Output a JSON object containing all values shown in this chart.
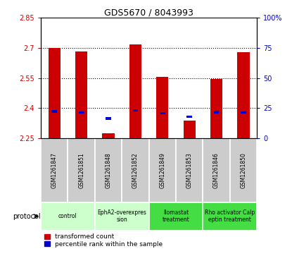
{
  "title": "GDS5670 / 8043993",
  "samples": [
    "GSM1261847",
    "GSM1261851",
    "GSM1261848",
    "GSM1261852",
    "GSM1261849",
    "GSM1261853",
    "GSM1261846",
    "GSM1261850"
  ],
  "red_values": [
    2.7,
    2.683,
    2.273,
    2.718,
    2.555,
    2.337,
    2.545,
    2.678
  ],
  "blue_values": [
    2.383,
    2.378,
    2.348,
    2.39,
    2.375,
    2.358,
    2.38,
    2.378
  ],
  "bar_base": 2.25,
  "ylim_left": [
    2.25,
    2.85
  ],
  "ylim_right": [
    0,
    100
  ],
  "yticks_left": [
    2.25,
    2.4,
    2.55,
    2.7,
    2.85
  ],
  "yticks_right": [
    0,
    25,
    50,
    75,
    100
  ],
  "ytick_labels_left": [
    "2.25",
    "2.4",
    "2.55",
    "2.7",
    "2.85"
  ],
  "ytick_labels_right": [
    "0",
    "25",
    "50",
    "75",
    "100%"
  ],
  "red_color": "#cc0000",
  "blue_color": "#0000cc",
  "bar_width": 0.45,
  "blue_bar_width": 0.2,
  "blue_bar_height": 0.012,
  "protocols": [
    {
      "label": "control",
      "indices": [
        0,
        1
      ],
      "color": "#ccffcc"
    },
    {
      "label": "EphA2-overexpres\nsion",
      "indices": [
        2,
        3
      ],
      "color": "#ccffcc"
    },
    {
      "label": "Ilomastat\ntreatment",
      "indices": [
        4,
        5
      ],
      "color": "#44dd44"
    },
    {
      "label": "Rho activator Calp\neptin treatment",
      "indices": [
        6,
        7
      ],
      "color": "#44dd44"
    }
  ],
  "sample_bg": "#cccccc",
  "legend_red_label": "transformed count",
  "legend_blue_label": "percentile rank within the sample",
  "protocol_text": "protocol",
  "figsize": [
    4.15,
    3.63
  ],
  "dpi": 100
}
